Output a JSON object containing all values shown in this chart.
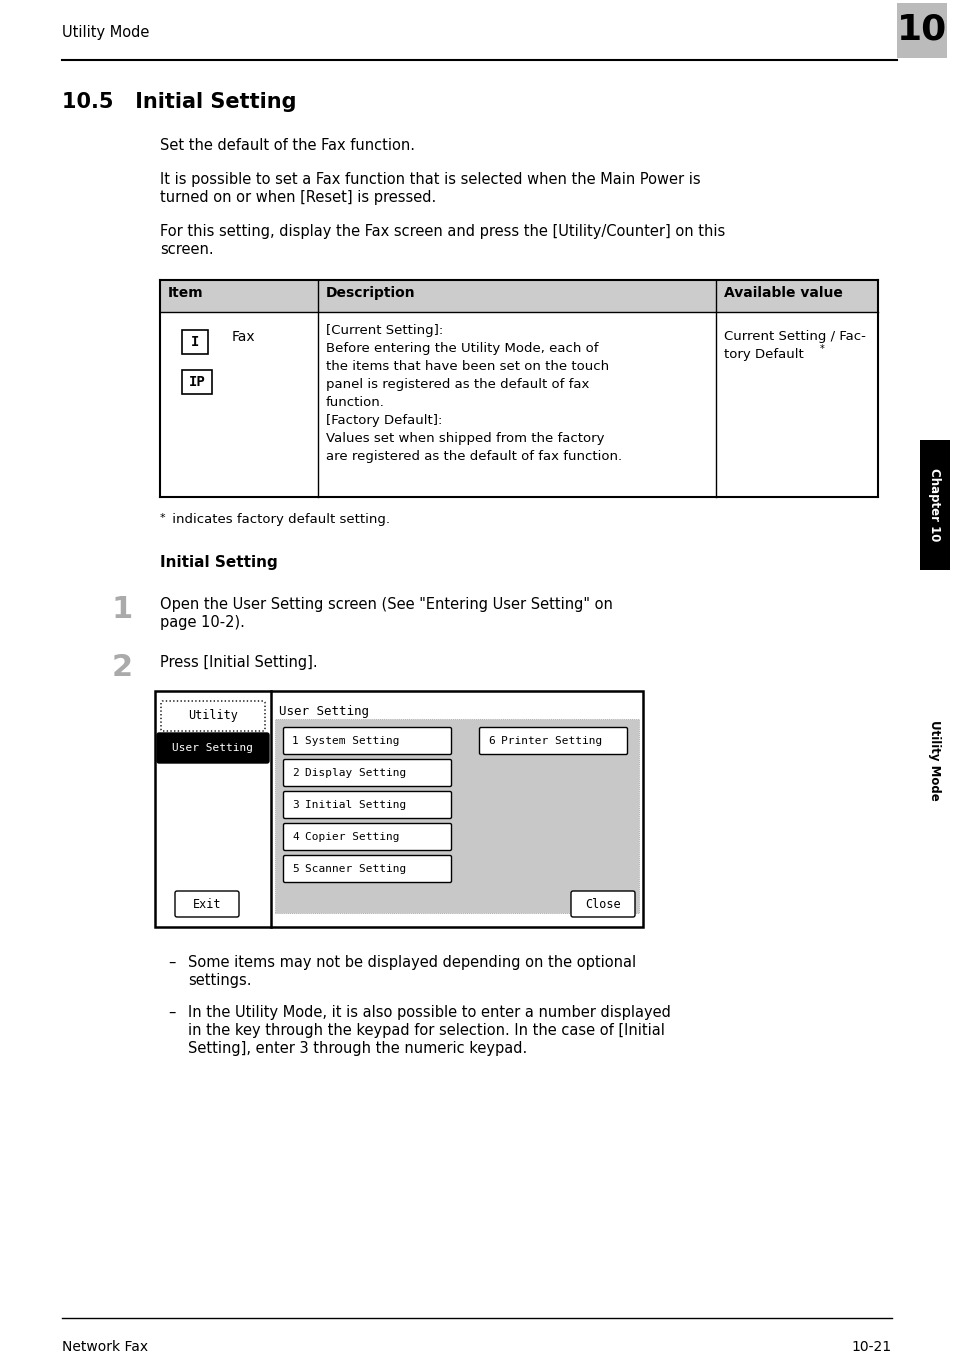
{
  "page_bg": "#ffffff",
  "header_text": "Utility Mode",
  "header_num": "10",
  "header_num_bg": "#bbbbbb",
  "section_title": "10.5   Initial Setting",
  "para1": "Set the default of the Fax function.",
  "para2a": "It is possible to set a Fax function that is selected when the Main Power is",
  "para2b": "turned on or when [Reset] is pressed.",
  "para3a": "For this setting, display the Fax screen and press the [Utility/Counter] on this",
  "para3b": "screen.",
  "table_header_bg": "#cccccc",
  "table_col1": "Item",
  "table_col2": "Description",
  "table_col3": "Available value",
  "table_item_icon1": "I",
  "table_item_icon2": "IP",
  "table_item_name": "Fax",
  "table_desc_lines": [
    "[Current Setting]:",
    "Before entering the Utility Mode, each of",
    "the items that have been set on the touch",
    "panel is registered as the default of fax",
    "function.",
    "[Factory Default]:",
    "Values set when shipped from the factory",
    "are registered as the default of fax function."
  ],
  "table_avail_line1": "Current Setting / Fac-",
  "table_avail_line2": "tory Default",
  "footnote_star": "*",
  "footnote_text": " indicates factory default setting.",
  "bold_heading": "Initial Setting",
  "step1_num": "1",
  "step1_text_a": "Open the User Setting screen (See \"Entering User Setting\" on",
  "step1_text_b": "page 10-2).",
  "step2_num": "2",
  "step2_text": "Press [Initial Setting].",
  "bullet1a": "Some items may not be displayed depending on the optional",
  "bullet1b": "settings.",
  "bullet2a": "In the Utility Mode, it is also possible to enter a number displayed",
  "bullet2b": "in the key through the keypad for selection. In the case of [Initial",
  "bullet2c": "Setting], enter 3 through the numeric keypad.",
  "side_text1": "Chapter 10",
  "side_text2": "Utility Mode",
  "footer_left": "Network Fax",
  "footer_right": "10-21"
}
